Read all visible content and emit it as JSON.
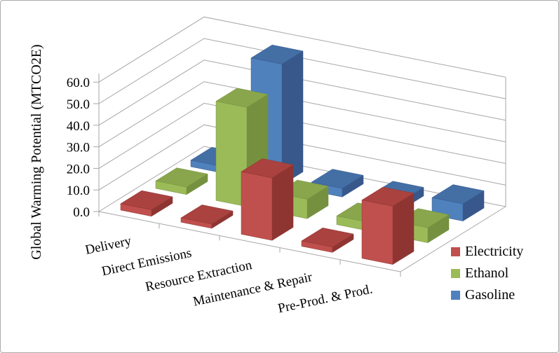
{
  "chart_data": {
    "type": "bar",
    "projection": "3d",
    "title": "",
    "xlabel": "",
    "ylabel": "Global Warming Potential (MTCO2E)",
    "categories": [
      "Delivery",
      "Direct Emissions",
      "Resource Extraction",
      "Maintenance & Repair",
      "Pre-Prod. & Prod."
    ],
    "series": [
      {
        "name": "Electricity",
        "values": [
          3,
          2,
          29,
          2.5,
          27
        ],
        "colors": {
          "front": "#C0504D",
          "side": "#8E3532",
          "top": "#AA423F"
        }
      },
      {
        "name": "Ethanol",
        "values": [
          3.5,
          46,
          9,
          4,
          7
        ],
        "colors": {
          "front": "#9BBB59",
          "side": "#75913F",
          "top": "#89A64C"
        }
      },
      {
        "name": "Gasoline",
        "values": [
          3,
          56,
          4,
          4,
          8
        ],
        "colors": {
          "front": "#4F81BD",
          "side": "#38588C",
          "top": "#436FA5"
        }
      }
    ],
    "ylim": [
      0,
      60
    ],
    "ytick_step": 10,
    "ytick_labels": [
      "0.0",
      "10.0",
      "20.0",
      "30.0",
      "40.0",
      "50.0",
      "60.0"
    ],
    "legend_position": "right",
    "grid": true
  },
  "style": {
    "axis_line_color": "#A6A6A6",
    "gridline_color": "#A6A6A6",
    "text_color": "#000000",
    "frame_border_color": "#ABABAB",
    "background": "#FFFFFF"
  }
}
